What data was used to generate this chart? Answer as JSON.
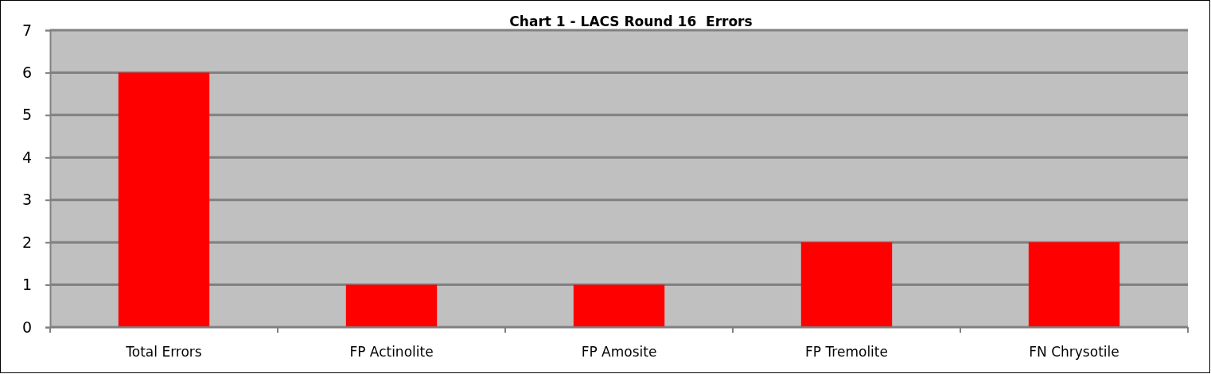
{
  "chart_data": {
    "type": "bar",
    "title": "Chart 1 - LACS Round 16  Errors",
    "categories": [
      "Total Errors",
      "FP Actinolite",
      "FP Amosite",
      "FP Tremolite",
      "FN Chrysotile"
    ],
    "values": [
      6,
      1,
      1,
      2,
      2
    ],
    "color": "#ff0000",
    "ylim": [
      0,
      7
    ],
    "yticks": [
      0,
      1,
      2,
      3,
      4,
      5,
      6,
      7
    ],
    "grid": "y"
  }
}
